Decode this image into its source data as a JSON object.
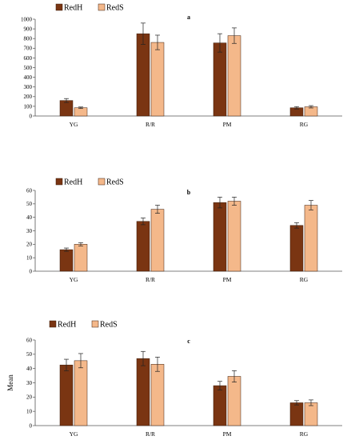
{
  "chart_data": [
    {
      "type": "bar",
      "title": "a",
      "categories": [
        "YG",
        "R/R",
        "PM",
        "RG"
      ],
      "series": [
        {
          "name": "RedH",
          "values": [
            160,
            850,
            755,
            85
          ],
          "errors": [
            20,
            110,
            95,
            12
          ]
        },
        {
          "name": "RedS",
          "values": [
            85,
            760,
            830,
            95
          ],
          "errors": [
            8,
            75,
            80,
            12
          ]
        }
      ],
      "ylim": [
        0,
        1000
      ],
      "yticks": [
        0,
        100,
        200,
        300,
        400,
        500,
        600,
        700,
        800,
        900,
        1000
      ],
      "ylabel": "",
      "legend_position": "top-left",
      "grid": false
    },
    {
      "type": "bar",
      "title": "b",
      "categories": [
        "YG",
        "R/R",
        "PM",
        "RG"
      ],
      "series": [
        {
          "name": "RedH",
          "values": [
            16,
            37,
            51,
            34
          ],
          "errors": [
            1.2,
            2.5,
            4,
            2
          ]
        },
        {
          "name": "RedS",
          "values": [
            20,
            46,
            52,
            49
          ],
          "errors": [
            1.2,
            3,
            3,
            3.5
          ]
        }
      ],
      "ylim": [
        0,
        60
      ],
      "yticks": [
        0,
        10,
        20,
        30,
        40,
        50,
        60
      ],
      "ylabel": "",
      "legend_position": "top-left",
      "grid": false
    },
    {
      "type": "bar",
      "title": "c",
      "categories": [
        "YG",
        "R/R",
        "PM",
        "RG"
      ],
      "series": [
        {
          "name": "RedH",
          "values": [
            42.5,
            47,
            28,
            16
          ],
          "errors": [
            4,
            5,
            3,
            1.5
          ]
        },
        {
          "name": "RedS",
          "values": [
            45.5,
            43,
            34.5,
            16
          ],
          "errors": [
            5,
            5,
            4,
            2
          ]
        }
      ],
      "ylim": [
        0,
        60
      ],
      "yticks": [
        0,
        10,
        20,
        30,
        40,
        50,
        60
      ],
      "ylabel": "Mean",
      "legend_position": "top-left",
      "grid": false
    }
  ],
  "colors": {
    "RedH": "#7a3512",
    "RedS": "#f4b88a"
  }
}
